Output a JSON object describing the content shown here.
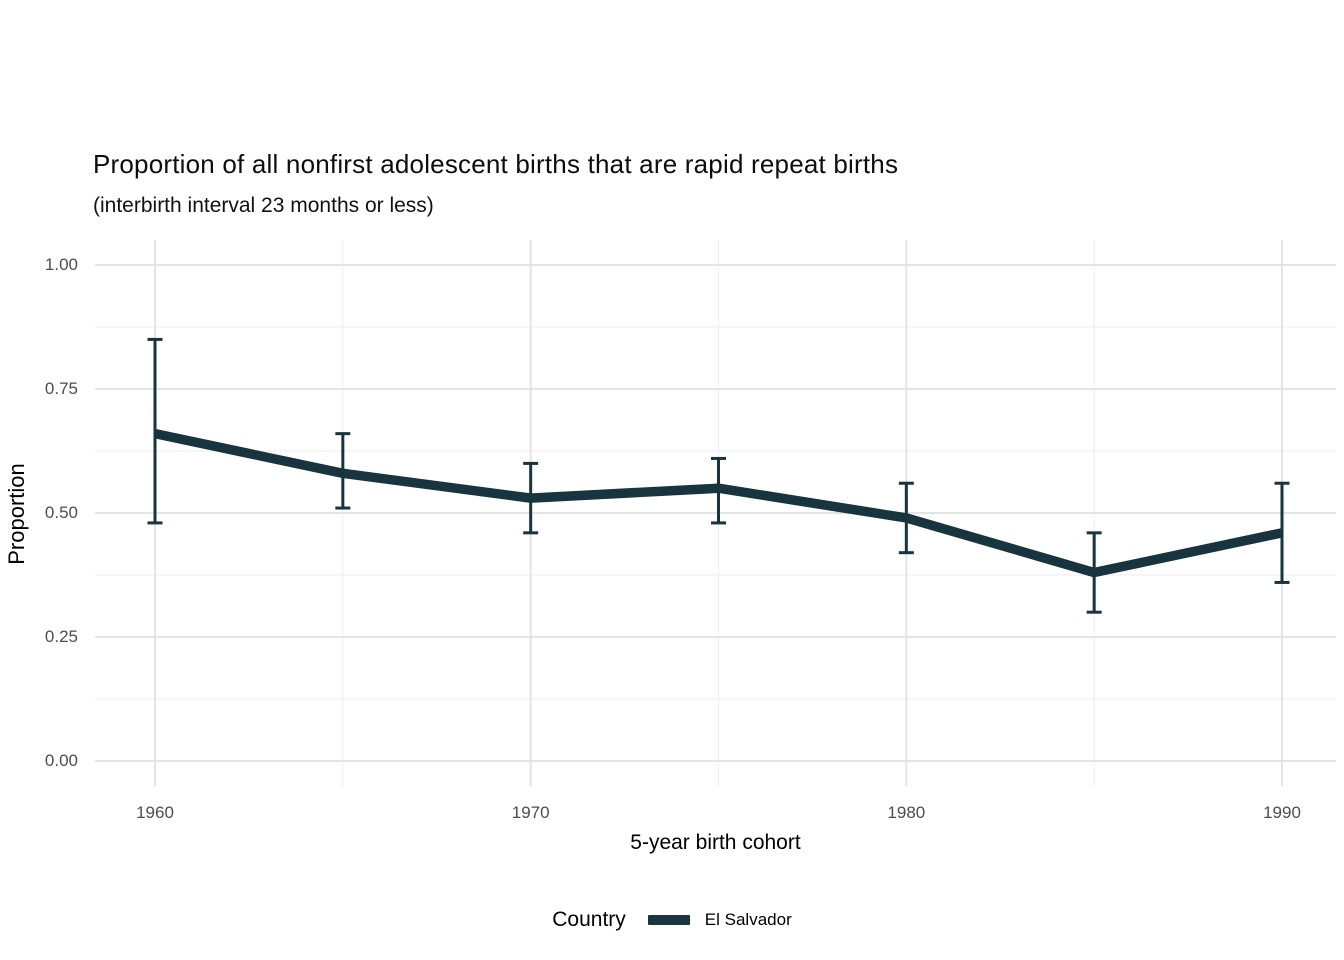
{
  "chart_data": {
    "type": "line",
    "title": "Proportion of all nonfirst adolescent births that are rapid repeat births",
    "subtitle": "(interbirth interval 23 months or less)",
    "xlabel": "5-year birth cohort",
    "ylabel": "Proportion",
    "legend": {
      "title": "Country",
      "position": "bottom",
      "entries": [
        {
          "label": "El Salvador",
          "color": "#17343f"
        }
      ]
    },
    "grid": true,
    "xlim": [
      1960,
      1990
    ],
    "ylim": [
      0,
      1
    ],
    "x_ticks": {
      "labeled": [
        1960,
        1970,
        1980,
        1990
      ],
      "minor": [
        1965,
        1975,
        1985
      ]
    },
    "y_ticks": [
      0.0,
      0.25,
      0.5,
      0.75,
      1.0
    ],
    "y_minor_ticks": [
      0.125,
      0.375,
      0.625,
      0.875
    ],
    "series": [
      {
        "name": "El Salvador",
        "color": "#17343f",
        "x": [
          1960,
          1965,
          1970,
          1975,
          1980,
          1985,
          1990
        ],
        "y": [
          0.66,
          0.58,
          0.53,
          0.55,
          0.49,
          0.38,
          0.46
        ],
        "ci_lower": [
          0.48,
          0.51,
          0.46,
          0.48,
          0.42,
          0.3,
          0.36
        ],
        "ci_upper": [
          0.85,
          0.66,
          0.6,
          0.61,
          0.56,
          0.46,
          0.56
        ]
      }
    ],
    "colors": {
      "grid_major": "#e4e4e4",
      "grid_minor": "#f0f0f0",
      "tick_label": "#4d4d4d"
    }
  }
}
